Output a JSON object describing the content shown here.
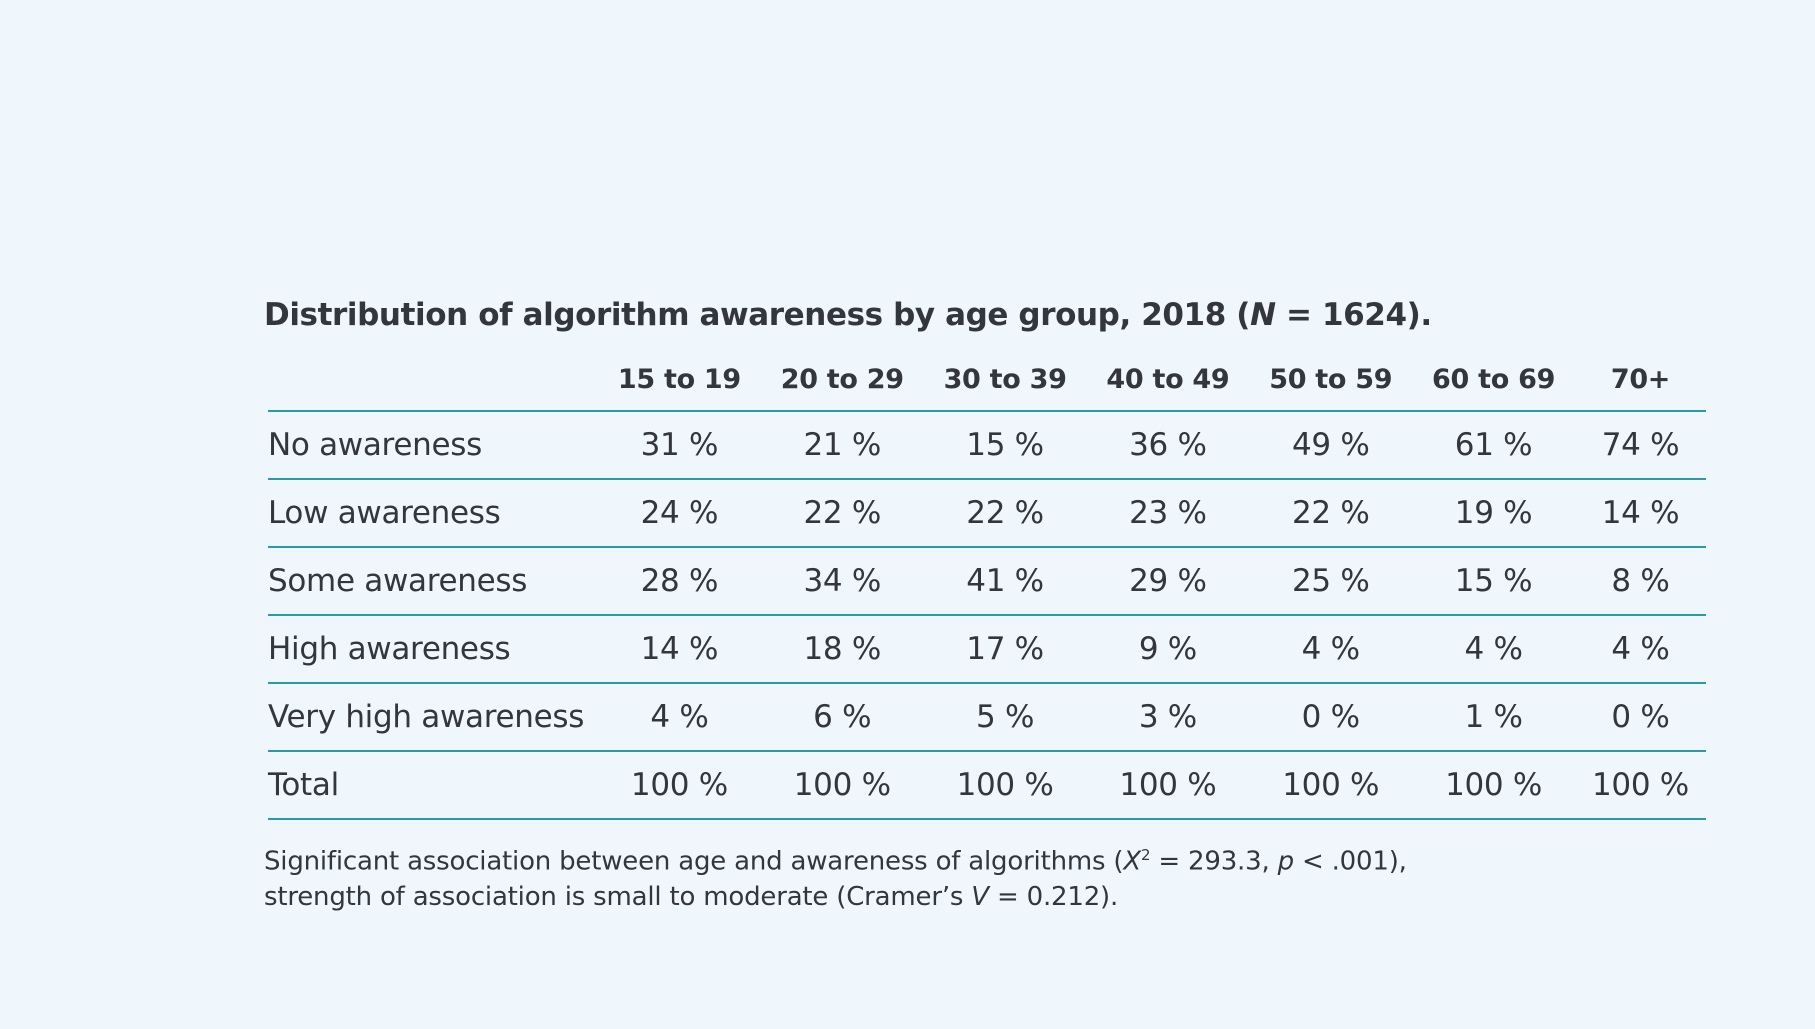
{
  "title": {
    "prefix": "Distribution of algorithm awareness by age group, 2018 (",
    "n_symbol": "N",
    "suffix": " = 1624)."
  },
  "colors": {
    "background": "#eff6fc",
    "rule": "#2a9aa9",
    "text": "#33363b"
  },
  "chart_data": {
    "type": "table",
    "title": "Distribution of algorithm awareness by age group, 2018 (N = 1624).",
    "columns": [
      "15 to 19",
      "20 to 29",
      "30 to 39",
      "40 to 49",
      "50 to 59",
      "60 to 69",
      "70+"
    ],
    "rows": [
      {
        "label": "No awareness",
        "cells": [
          "31 %",
          "21 %",
          "15 %",
          "36 %",
          "49 %",
          "61 %",
          "74 %"
        ]
      },
      {
        "label": "Low awareness",
        "cells": [
          "24 %",
          "22 %",
          "22 %",
          "23 %",
          "22 %",
          "19 %",
          "14 %"
        ]
      },
      {
        "label": "Some awareness",
        "cells": [
          "28 %",
          "34 %",
          "41 %",
          "29 %",
          "25 %",
          "15 %",
          "8 %"
        ]
      },
      {
        "label": "High awareness",
        "cells": [
          "14 %",
          "18 %",
          "17 %",
          "9 %",
          "4 %",
          "4 %",
          "4 %"
        ]
      },
      {
        "label": "Very high awareness",
        "cells": [
          "4 %",
          "6 %",
          "5 %",
          "3 %",
          "0 %",
          "1 %",
          "0 %"
        ]
      },
      {
        "label": "Total",
        "cells": [
          "100 %",
          "100 %",
          "100 %",
          "100 %",
          "100 %",
          "100 %",
          "100 %"
        ]
      }
    ]
  },
  "footnote": {
    "line1_a": "Significant association between age and awareness of algorithms (",
    "chi_symbol": "X",
    "chi_sup": "2",
    "line1_b": " = 293.3, ",
    "p_symbol": "p",
    "line1_c": " < .001),",
    "line2_a": "strength of association is small to moderate (Cramer’s ",
    "v_symbol": "V",
    "line2_b": " = 0.212)."
  }
}
